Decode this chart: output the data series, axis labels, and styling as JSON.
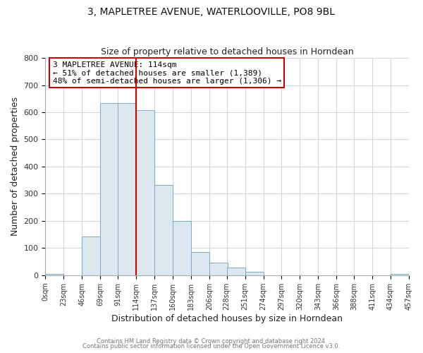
{
  "title": "3, MAPLETREE AVENUE, WATERLOOVILLE, PO8 9BL",
  "subtitle": "Size of property relative to detached houses in Horndean",
  "xlabel": "Distribution of detached houses by size in Horndean",
  "ylabel": "Number of detached properties",
  "bar_left_edges": [
    0,
    23,
    46,
    69,
    91,
    114,
    137,
    160,
    183,
    206,
    228,
    251,
    274,
    297,
    320,
    343,
    366,
    388,
    411,
    434
  ],
  "bar_heights": [
    5,
    0,
    143,
    633,
    633,
    608,
    333,
    200,
    85,
    46,
    27,
    12,
    0,
    0,
    0,
    0,
    0,
    0,
    0,
    5
  ],
  "bar_widths": [
    23,
    23,
    23,
    23,
    23,
    23,
    23,
    23,
    23,
    23,
    23,
    23,
    23,
    23,
    23,
    23,
    23,
    23,
    23,
    23
  ],
  "tick_labels": [
    "0sqm",
    "23sqm",
    "46sqm",
    "69sqm",
    "91sqm",
    "114sqm",
    "137sqm",
    "160sqm",
    "183sqm",
    "206sqm",
    "228sqm",
    "251sqm",
    "274sqm",
    "297sqm",
    "320sqm",
    "343sqm",
    "366sqm",
    "388sqm",
    "411sqm",
    "434sqm",
    "457sqm"
  ],
  "tick_positions": [
    0,
    23,
    46,
    69,
    91,
    114,
    137,
    160,
    183,
    206,
    228,
    251,
    274,
    297,
    320,
    343,
    366,
    388,
    411,
    434,
    457
  ],
  "bar_color": "#dce8f0",
  "bar_edge_color": "#7aabcc",
  "vline_x": 114,
  "vline_color": "#cc0000",
  "ylim": [
    0,
    800
  ],
  "xlim": [
    0,
    457
  ],
  "yticks": [
    0,
    100,
    200,
    300,
    400,
    500,
    600,
    700,
    800
  ],
  "annotation_line1": "3 MAPLETREE AVENUE: 114sqm",
  "annotation_line2": "← 51% of detached houses are smaller (1,389)",
  "annotation_line3": "48% of semi-detached houses are larger (1,306) →",
  "footer_line1": "Contains HM Land Registry data © Crown copyright and database right 2024.",
  "footer_line2": "Contains public sector information licensed under the Open Government Licence v3.0.",
  "background_color": "#ffffff",
  "plot_bg_color": "#ffffff",
  "grid_color": "#d0d8e0"
}
